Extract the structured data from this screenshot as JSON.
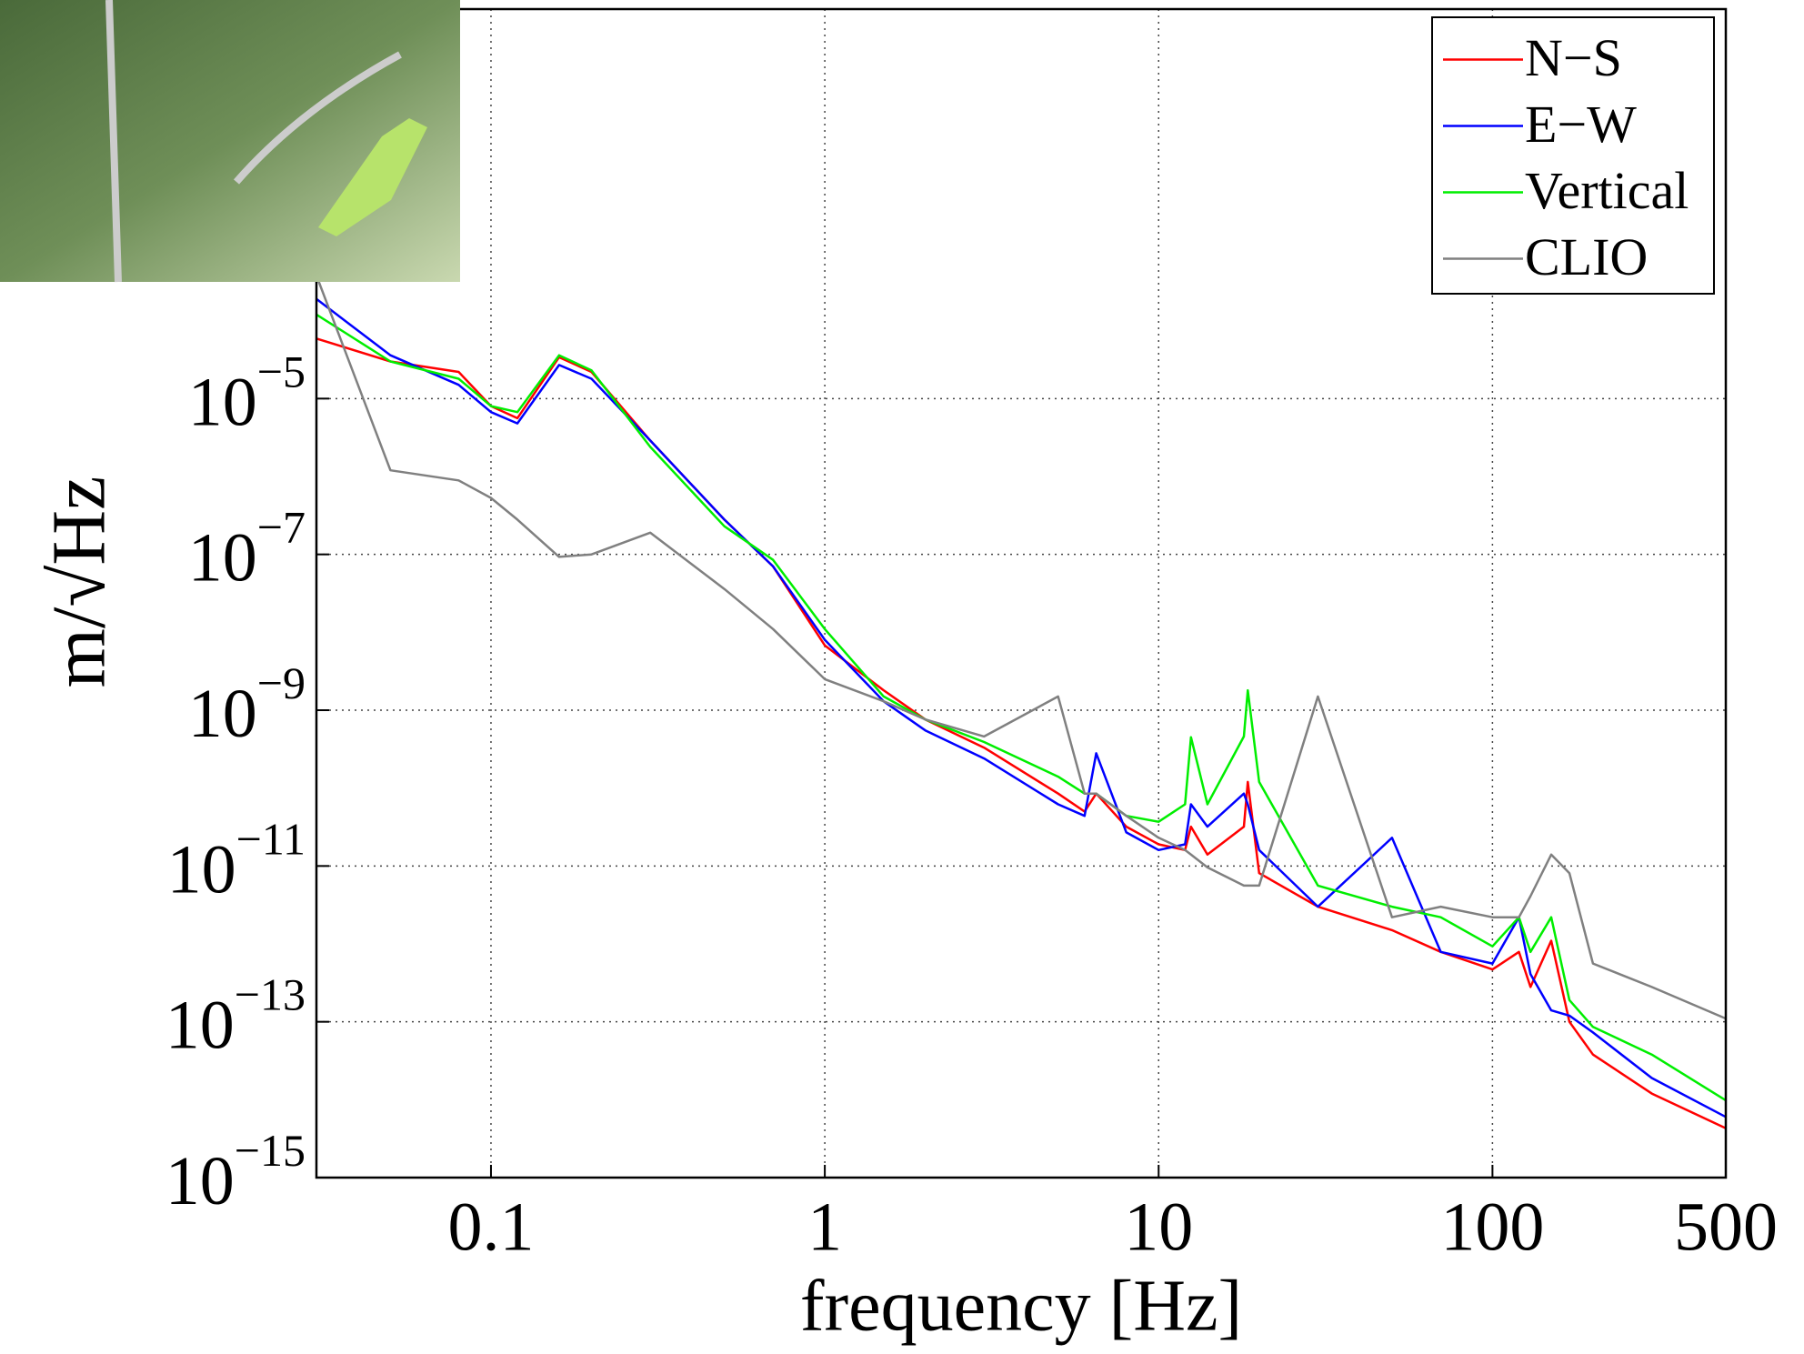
{
  "chart_data": {
    "type": "line",
    "xlabel": "frequency [Hz]",
    "ylabel": "m/√Hz",
    "xscale": "log",
    "yscale": "log",
    "grid": true,
    "legend": "upper right",
    "x": [
      0.03,
      0.05,
      0.08,
      0.1,
      0.12,
      0.16,
      0.2,
      0.3,
      0.5,
      0.7,
      1,
      1.5,
      2,
      3,
      5,
      6,
      6.5,
      8,
      10,
      12,
      12.5,
      14,
      18,
      18.5,
      20,
      30,
      50,
      70,
      100,
      120,
      130,
      150,
      170,
      200,
      300,
      500
    ],
    "series": [
      {
        "name": "N−S",
        "color": "#ff0000",
        "values": [
          5.9e-05,
          3e-05,
          2.2e-05,
          8e-06,
          5.6e-06,
          3.4e-05,
          2.2e-05,
          2.9e-06,
          2.8e-07,
          7e-08,
          6.8e-09,
          1.8e-09,
          7.6e-10,
          3.3e-10,
          8.5e-11,
          5e-11,
          8.5e-11,
          3.2e-11,
          1.9e-11,
          1.6e-11,
          3.2e-11,
          1.4e-11,
          3.2e-11,
          1.2e-10,
          8.1e-12,
          3e-12,
          1.5e-12,
          7.9e-13,
          4.7e-13,
          7.9e-13,
          2.8e-13,
          1.1e-12,
          1e-13,
          3.8e-14,
          1.2e-14,
          4.3e-15
        ]
      },
      {
        "name": "E−W",
        "color": "#0000ff",
        "values": [
          0.00019,
          3.6e-05,
          1.5e-05,
          6.7e-06,
          4.8e-06,
          2.7e-05,
          1.8e-05,
          2.9e-06,
          2.8e-07,
          7e-08,
          8e-09,
          1.3e-09,
          5.5e-10,
          2.4e-10,
          6.2e-11,
          4.4e-11,
          2.8e-10,
          2.7e-11,
          1.6e-11,
          1.9e-11,
          6.2e-11,
          3.2e-11,
          8.5e-11,
          6.2e-11,
          1.6e-11,
          3e-12,
          2.3e-11,
          7.9e-13,
          5.6e-13,
          2.2e-12,
          4.1e-13,
          1.4e-13,
          1.2e-13,
          7.3e-14,
          1.9e-14,
          6e-15
        ]
      },
      {
        "name": "Vertical",
        "color": "#00ee00",
        "values": [
          0.00012,
          3e-05,
          1.8e-05,
          8e-06,
          6.7e-06,
          3.6e-05,
          2.3e-05,
          2.4e-06,
          2.3e-07,
          8.5e-08,
          1.1e-08,
          1.5e-09,
          7.6e-10,
          3.9e-10,
          1.4e-10,
          8.5e-11,
          8.5e-11,
          4.4e-11,
          3.7e-11,
          6.2e-11,
          4.5e-10,
          6.2e-11,
          4.6e-10,
          1.8e-09,
          1.2e-10,
          5.6e-12,
          3e-12,
          2.2e-12,
          9.3e-13,
          2.2e-12,
          7.9e-13,
          2.2e-12,
          1.9e-13,
          8.6e-14,
          3.8e-14,
          9.8e-15
        ]
      },
      {
        "name": "CLIO",
        "color": "#808080",
        "values": [
          0.00038,
          1.2e-06,
          8.9e-07,
          5.3e-07,
          2.8e-07,
          9.3e-08,
          1e-07,
          1.9e-07,
          3.6e-08,
          1.1e-08,
          2.5e-09,
          1.3e-09,
          7.6e-10,
          4.6e-10,
          1.5e-09,
          8.5e-11,
          8.5e-11,
          4.4e-11,
          2.3e-11,
          1.6e-11,
          1.4e-11,
          9.6e-12,
          5.6e-12,
          5.6e-12,
          5.6e-12,
          1.5e-09,
          2.2e-12,
          3e-12,
          2.2e-12,
          2.2e-12,
          4.1e-12,
          1.4e-11,
          8.1e-12,
          5.6e-13,
          2.8e-13,
          1.1e-13
        ]
      }
    ],
    "xlim": [
      0.03,
      500
    ],
    "xticks": [
      0.1,
      1,
      10,
      100,
      500
    ],
    "ylim": [
      1e-15,
      1
    ],
    "yticks": [
      {
        "value": 1e-15,
        "label": "10−15"
      },
      {
        "value": 1e-13,
        "label": "10−13"
      },
      {
        "value": 1e-11,
        "label": "10−11"
      },
      {
        "value": 1e-09,
        "label": "10−9"
      },
      {
        "value": 1e-07,
        "label": "10−7"
      },
      {
        "value": 1e-05,
        "label": "10−5"
      }
    ]
  }
}
